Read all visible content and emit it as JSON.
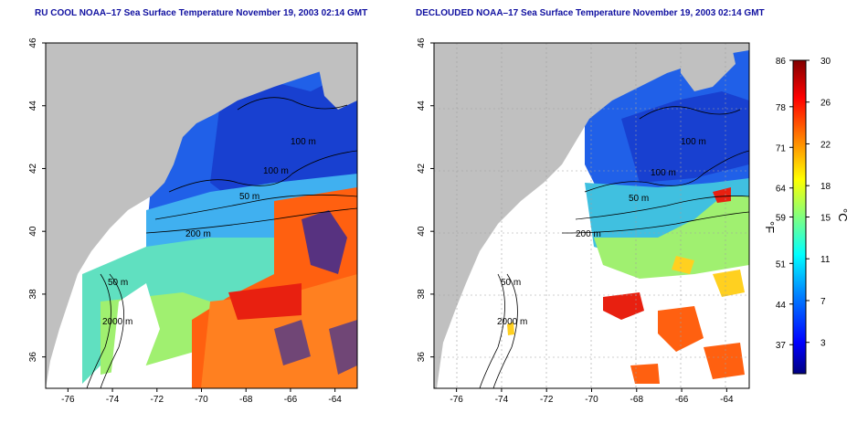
{
  "maps": [
    {
      "id": "raw",
      "title": "RU COOL NOAA–17 Sea Surface Temperature November 19, 2003 02:14 GMT",
      "x_ticks": [
        "-76",
        "-74",
        "-72",
        "-70",
        "-68",
        "-66",
        "-64"
      ],
      "y_ticks": [
        "36",
        "38",
        "40",
        "42",
        "44",
        "46"
      ],
      "contour_labels": [
        "100 m",
        "100 m",
        "50 m",
        "200 m",
        "50 m",
        "2000 m"
      ],
      "grid": false
    },
    {
      "id": "declouded",
      "title": "DECLOUDED NOAA–17 Sea Surface Temperature November 19, 2003 02:14 GMT",
      "x_ticks": [
        "-76",
        "-74",
        "-72",
        "-70",
        "-68",
        "-66",
        "-64"
      ],
      "y_ticks": [
        "36",
        "38",
        "40",
        "42",
        "44",
        "46"
      ],
      "contour_labels": [
        "100 m",
        "100 m",
        "50 m",
        "200 m",
        "50 m",
        "2000 m"
      ],
      "grid": true
    }
  ],
  "colorbar": {
    "fahrenheit_unit": "°F",
    "celsius_unit": "°C",
    "fahrenheit_ticks": [
      "86",
      "78",
      "71",
      "64",
      "59",
      "51",
      "44",
      "37"
    ],
    "celsius_ticks": [
      "30",
      "26",
      "22",
      "18",
      "15",
      "11",
      "7",
      "3"
    ],
    "range_c": [
      0,
      30
    ],
    "colors": [
      "#000080",
      "#0000ff",
      "#0080ff",
      "#00ffff",
      "#80ff80",
      "#ffff00",
      "#ff8000",
      "#ff0000",
      "#800000"
    ]
  },
  "colors": {
    "land": "#c0c0c0",
    "cloud": "#ffffff",
    "title": "#1010a0"
  }
}
